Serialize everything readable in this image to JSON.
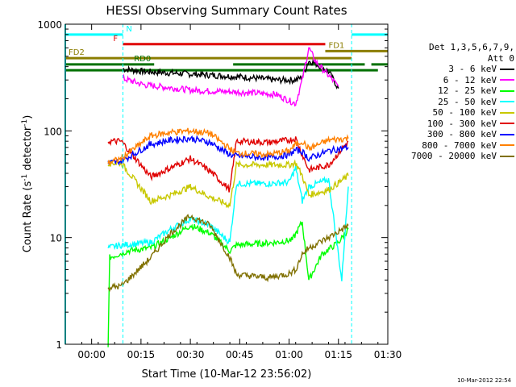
{
  "chart_data": {
    "type": "line",
    "title": "HESSI Observing Summary Count Rates",
    "xlabel": "Start Time (10-Mar-12 23:56:02)",
    "ylabel_main": "Count Rate (s",
    "ylabel_sup1": "-1",
    "ylabel_mid": " detector",
    "ylabel_sup2": "-1",
    "ylabel_end": ")",
    "yscale": "log",
    "ylim": [
      1,
      1000
    ],
    "xlim_min": [
      -4,
      94
    ],
    "x_ticks": [
      {
        "min": 4,
        "label": "00:00"
      },
      {
        "min": 19,
        "label": "00:15"
      },
      {
        "min": 34,
        "label": "00:30"
      },
      {
        "min": 49,
        "label": "00:45"
      },
      {
        "min": 64,
        "label": "01:00"
      },
      {
        "min": 79,
        "label": "01:15"
      },
      {
        "min": 94,
        "label": "01:30"
      }
    ],
    "y_ticks": [
      {
        "v": 1,
        "label": "1"
      },
      {
        "v": 10,
        "label": "10"
      },
      {
        "v": 100,
        "label": "100"
      },
      {
        "v": 1000,
        "label": "1000"
      }
    ],
    "flags": [
      {
        "name": "N",
        "color": "#00ffff",
        "y": 800,
        "segments": [
          [
            -4,
            13.5
          ],
          [
            83,
            94
          ]
        ]
      },
      {
        "name": "F",
        "color": "#e00000",
        "y": 650,
        "segments": [
          [
            13.5,
            75
          ]
        ]
      },
      {
        "name": "FD1",
        "color": "#8b7d00",
        "y": 560,
        "segments": [
          [
            75,
            94
          ]
        ]
      },
      {
        "name": "FD2",
        "color": "#8b7d00",
        "y": 480,
        "segments": [
          [
            -4,
            83
          ]
        ]
      },
      {
        "name": "RD0",
        "color": "#007000",
        "y": 420,
        "segments": [
          [
            -4,
            23
          ],
          [
            47,
            87
          ],
          [
            89,
            94
          ]
        ]
      },
      {
        "name": "",
        "color": "#007000",
        "y": 370,
        "segments": [
          [
            -4,
            91
          ]
        ]
      }
    ],
    "night_lines_min": [
      13.5,
      83
    ],
    "saa_line_min": -4,
    "legend_header": "Det 1,3,5,6,7,9,",
    "legend_header2": "Att 0",
    "series": [
      {
        "name": "3 - 6 keV",
        "color": "#000000"
      },
      {
        "name": "6 - 12 keV",
        "color": "#ff00ff"
      },
      {
        "name": "12 - 25 keV",
        "color": "#00ff00"
      },
      {
        "name": "25 - 50 keV",
        "color": "#00ffff"
      },
      {
        "name": "50 - 100 keV",
        "color": "#c8c800"
      },
      {
        "name": "100 - 300 keV",
        "color": "#e00000"
      },
      {
        "name": "300 - 800 keV",
        "color": "#0000ff"
      },
      {
        "name": "800 - 7000 keV",
        "color": "#ff8000"
      },
      {
        "name": "7000 - 20000 keV",
        "color": "#807000"
      }
    ],
    "profiles": {
      "3 - 6 keV": [
        [
          13.5,
          380
        ],
        [
          20,
          360
        ],
        [
          35,
          340
        ],
        [
          50,
          320
        ],
        [
          60,
          300
        ],
        [
          66,
          300
        ],
        [
          68,
          320
        ],
        [
          70,
          450
        ],
        [
          72,
          430
        ],
        [
          76,
          360
        ],
        [
          79,
          250
        ]
      ],
      "6 - 12 keV": [
        [
          13.5,
          310
        ],
        [
          20,
          270
        ],
        [
          35,
          240
        ],
        [
          50,
          230
        ],
        [
          60,
          220
        ],
        [
          66,
          180
        ],
        [
          68,
          300
        ],
        [
          70,
          600
        ],
        [
          72,
          450
        ],
        [
          76,
          330
        ],
        [
          79,
          260
        ]
      ],
      "12 - 25 keV": [
        [
          9,
          1.0
        ],
        [
          9.5,
          6.5
        ],
        [
          15,
          7.5
        ],
        [
          22,
          8
        ],
        [
          28,
          10
        ],
        [
          34,
          13
        ],
        [
          40,
          11
        ],
        [
          46,
          7.5
        ],
        [
          48,
          8.5
        ],
        [
          60,
          9
        ],
        [
          65,
          9.5
        ],
        [
          68,
          14
        ],
        [
          70,
          4
        ],
        [
          74,
          7
        ],
        [
          79,
          9
        ],
        [
          82,
          12
        ]
      ],
      "25 - 50 keV": [
        [
          9,
          8
        ],
        [
          13,
          8.5
        ],
        [
          22,
          9
        ],
        [
          28,
          12
        ],
        [
          34,
          15
        ],
        [
          40,
          13
        ],
        [
          46,
          9
        ],
        [
          48,
          32
        ],
        [
          58,
          32
        ],
        [
          64,
          33
        ],
        [
          66,
          45
        ],
        [
          68,
          22
        ],
        [
          70,
          30
        ],
        [
          76,
          35
        ],
        [
          80,
          4
        ],
        [
          82,
          30
        ]
      ],
      "50 - 100 keV": [
        [
          9,
          50
        ],
        [
          13,
          50
        ],
        [
          22,
          22
        ],
        [
          28,
          25
        ],
        [
          34,
          30
        ],
        [
          40,
          24
        ],
        [
          46,
          20
        ],
        [
          48,
          48
        ],
        [
          58,
          48
        ],
        [
          64,
          48
        ],
        [
          66,
          50
        ],
        [
          68,
          38
        ],
        [
          70,
          25
        ],
        [
          76,
          28
        ],
        [
          82,
          38
        ]
      ],
      "100 - 300 keV": [
        [
          9,
          80
        ],
        [
          13,
          80
        ],
        [
          22,
          37
        ],
        [
          28,
          45
        ],
        [
          34,
          55
        ],
        [
          40,
          42
        ],
        [
          46,
          28
        ],
        [
          48,
          80
        ],
        [
          58,
          78
        ],
        [
          64,
          82
        ],
        [
          66,
          85
        ],
        [
          68,
          60
        ],
        [
          70,
          43
        ],
        [
          76,
          48
        ],
        [
          82,
          80
        ]
      ],
      "300 - 800 keV": [
        [
          9,
          50
        ],
        [
          13,
          52
        ],
        [
          22,
          75
        ],
        [
          28,
          82
        ],
        [
          34,
          85
        ],
        [
          40,
          78
        ],
        [
          46,
          60
        ],
        [
          48,
          58
        ],
        [
          58,
          56
        ],
        [
          64,
          60
        ],
        [
          66,
          66
        ],
        [
          68,
          64
        ],
        [
          70,
          55
        ],
        [
          76,
          65
        ],
        [
          82,
          70
        ]
      ],
      "800 - 7000 keV": [
        [
          9,
          50
        ],
        [
          13,
          55
        ],
        [
          22,
          90
        ],
        [
          28,
          97
        ],
        [
          34,
          100
        ],
        [
          40,
          95
        ],
        [
          46,
          68
        ],
        [
          48,
          62
        ],
        [
          58,
          60
        ],
        [
          64,
          65
        ],
        [
          66,
          75
        ],
        [
          68,
          80
        ],
        [
          70,
          68
        ],
        [
          76,
          82
        ],
        [
          82,
          85
        ]
      ],
      "7000 - 20000 keV": [
        [
          9,
          3.4
        ],
        [
          13,
          3.5
        ],
        [
          22,
          6.5
        ],
        [
          28,
          11
        ],
        [
          34,
          16
        ],
        [
          40,
          13
        ],
        [
          46,
          6.5
        ],
        [
          48,
          4.5
        ],
        [
          58,
          4.2
        ],
        [
          64,
          4.6
        ],
        [
          66,
          5
        ],
        [
          68,
          7
        ],
        [
          70,
          8
        ],
        [
          76,
          10
        ],
        [
          82,
          13
        ]
      ]
    }
  },
  "stamp": "10-Mar-2012 22:54"
}
